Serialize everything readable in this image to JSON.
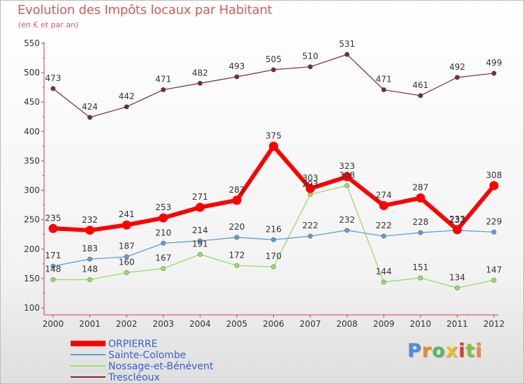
{
  "header": {
    "title": "Evolution des Impôts locaux par Habitant",
    "subtitle": "(en € et par an)"
  },
  "logo": {
    "text": "Proxiti",
    "letters": [
      "P",
      "r",
      "o",
      "x",
      "i",
      "t",
      "i"
    ]
  },
  "chart_data": {
    "type": "line",
    "title": "Evolution des Impôts locaux par Habitant",
    "subtitle": "(en € et par an)",
    "xlabel": "",
    "ylabel": "",
    "ylim": [
      100,
      550
    ],
    "yticks": [
      100,
      150,
      200,
      250,
      300,
      350,
      400,
      450,
      500,
      550
    ],
    "grid": false,
    "legend_position": "bottom-left",
    "x": [
      "2000",
      "2001",
      "2002",
      "2003",
      "2004",
      "2005",
      "2006",
      "2007",
      "2008",
      "2009",
      "2010",
      "2011",
      "2012"
    ],
    "series": [
      {
        "name": "ORPIERRE",
        "color": "#ff0000",
        "legend_text_color": "#3a5fd0",
        "values": [
          235,
          232,
          241,
          253,
          271,
          283,
          375,
          303,
          323,
          274,
          287,
          233,
          308
        ],
        "labels": [
          "235",
          "232",
          "241",
          "253",
          "271",
          "283",
          "375",
          "303",
          "323",
          "274",
          "287",
          "233",
          "308"
        ]
      },
      {
        "name": "Sainte-Colombe",
        "color": "#5d9fd6",
        "legend_text_color": "#3a5fd0",
        "values": [
          171,
          183,
          187,
          210,
          214,
          220,
          216,
          222,
          232,
          222,
          228,
          232,
          229
        ],
        "labels": [
          "171",
          "183",
          "187",
          "210",
          "214",
          "220",
          "216",
          "222",
          "232",
          "222",
          "228",
          "232",
          "229"
        ]
      },
      {
        "name": "Nossage-et-Bénévent",
        "color": "#9bdb6b",
        "legend_text_color": "#3a5fd0",
        "values": [
          148,
          148,
          160,
          167,
          191,
          172,
          170,
          293,
          308,
          144,
          151,
          134,
          147
        ],
        "labels": [
          "148",
          "148",
          "160",
          "167",
          "191",
          "172",
          "170",
          "293",
          "308",
          "144",
          "151",
          "134",
          "147"
        ]
      },
      {
        "name": "Trescléoux",
        "color": "#7a2e2e",
        "legend_text_color": "#3a5fd0",
        "values": [
          473,
          424,
          442,
          471,
          482,
          493,
          505,
          510,
          531,
          471,
          461,
          492,
          499
        ],
        "labels": [
          "473",
          "424",
          "442",
          "471",
          "482",
          "493",
          "505",
          "510",
          "531",
          "471",
          "461",
          "492",
          "499"
        ]
      }
    ]
  }
}
